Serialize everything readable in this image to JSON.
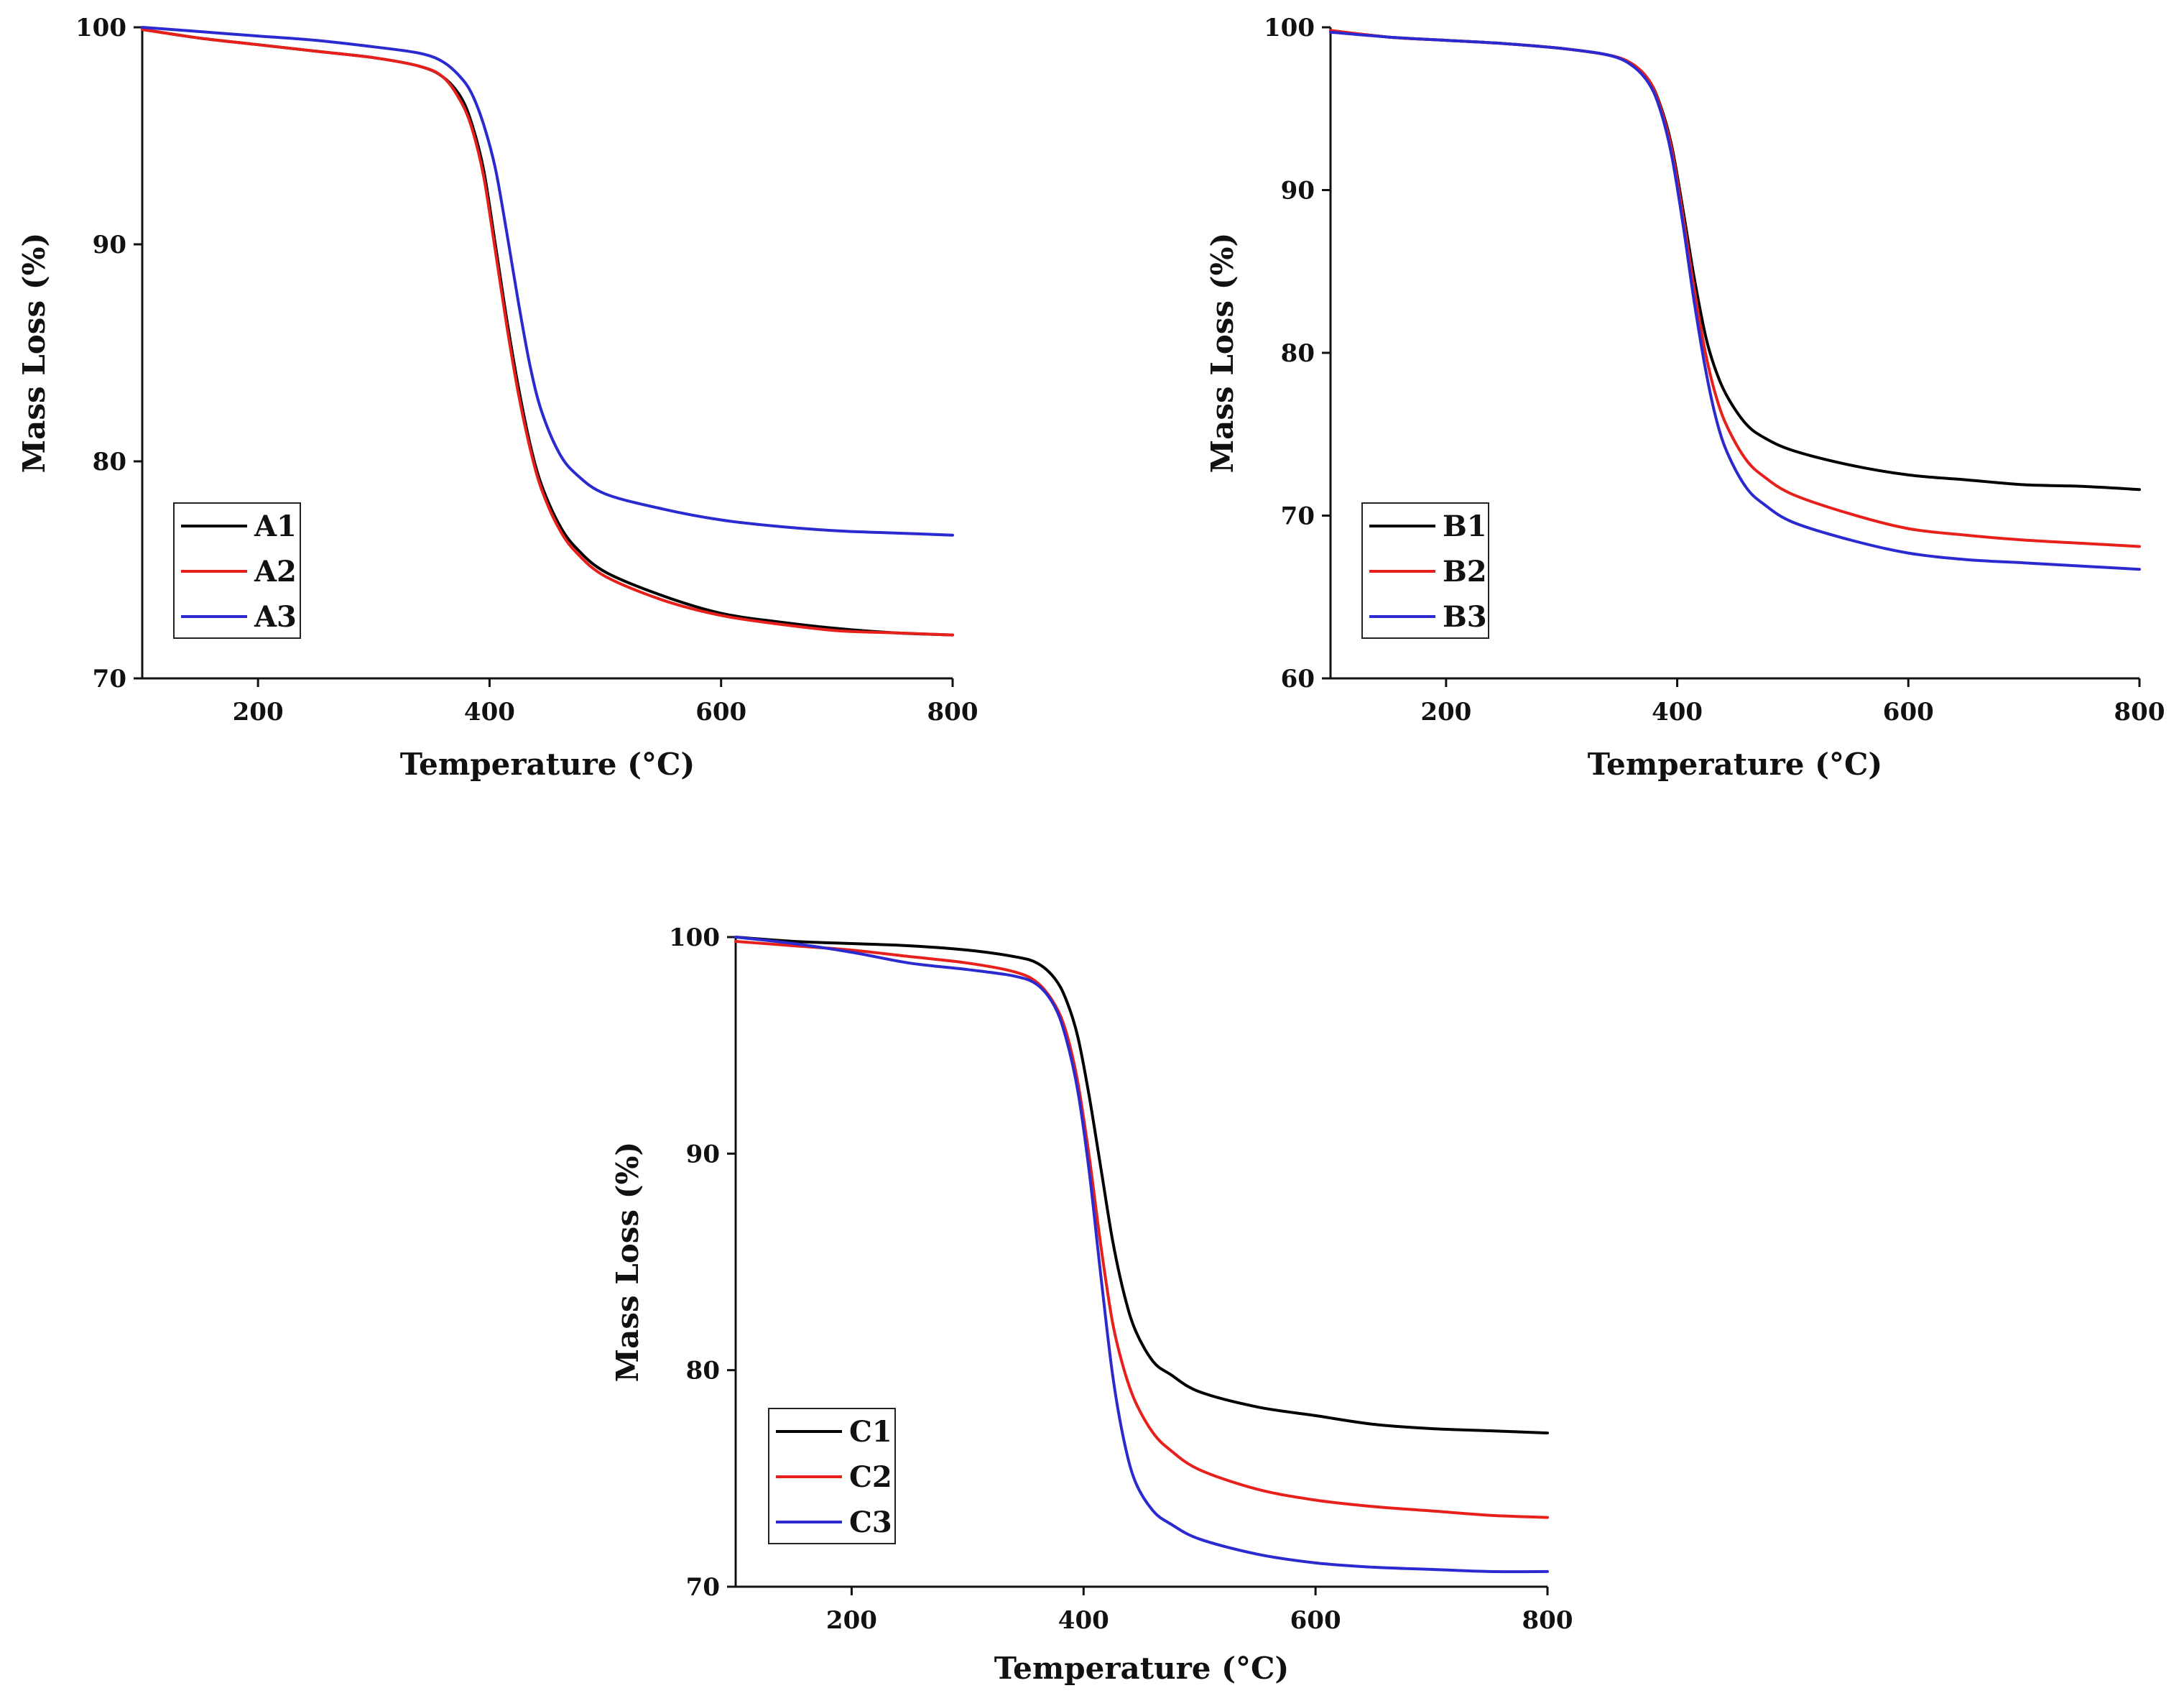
{
  "chart_data": [
    {
      "type": "line",
      "xlabel": "Temperature (°C)",
      "ylabel": "Mass Loss (%)",
      "xlim": [
        100,
        800
      ],
      "ylim": [
        70,
        100
      ],
      "xticks": [
        200,
        400,
        600,
        800
      ],
      "yticks": [
        70,
        80,
        90,
        100
      ],
      "legend_position": "bottom-left",
      "x": [
        100,
        150,
        200,
        250,
        300,
        340,
        360,
        375,
        385,
        395,
        405,
        415,
        425,
        435,
        445,
        460,
        475,
        500,
        550,
        600,
        650,
        700,
        750,
        800
      ],
      "series": [
        {
          "name": "A1",
          "color": "#000000",
          "values": [
            99.9,
            99.5,
            99.2,
            98.9,
            98.6,
            98.2,
            97.7,
            96.8,
            95.5,
            93.4,
            90.0,
            86.5,
            83.4,
            80.8,
            78.9,
            77.1,
            76.0,
            74.9,
            73.8,
            73.0,
            72.6,
            72.3,
            72.1,
            72.0
          ]
        },
        {
          "name": "A2",
          "color": "#e8201c",
          "values": [
            99.9,
            99.5,
            99.2,
            98.9,
            98.6,
            98.2,
            97.7,
            96.6,
            95.3,
            93.1,
            89.7,
            86.2,
            83.1,
            80.6,
            78.7,
            76.9,
            75.8,
            74.7,
            73.6,
            72.9,
            72.5,
            72.2,
            72.1,
            72.0
          ]
        },
        {
          "name": "A3",
          "color": "#2a2ad0",
          "values": [
            100.0,
            99.8,
            99.6,
            99.4,
            99.1,
            98.8,
            98.4,
            97.7,
            96.9,
            95.5,
            93.5,
            90.5,
            87.3,
            84.4,
            82.3,
            80.4,
            79.4,
            78.5,
            77.8,
            77.3,
            77.0,
            76.8,
            76.7,
            76.6
          ]
        }
      ]
    },
    {
      "type": "line",
      "xlabel": "Temperature (°C)",
      "ylabel": "Mass Loss (%)",
      "xlim": [
        100,
        800
      ],
      "ylim": [
        60,
        100
      ],
      "xticks": [
        200,
        400,
        600,
        800
      ],
      "yticks": [
        60,
        70,
        80,
        90,
        100
      ],
      "legend_position": "bottom-left",
      "x": [
        100,
        150,
        200,
        250,
        300,
        340,
        360,
        375,
        385,
        395,
        405,
        415,
        425,
        435,
        445,
        460,
        475,
        500,
        550,
        600,
        650,
        700,
        750,
        800
      ],
      "series": [
        {
          "name": "B1",
          "color": "#000000",
          "values": [
            99.8,
            99.4,
            99.2,
            99.0,
            98.7,
            98.3,
            97.8,
            96.8,
            95.3,
            92.8,
            88.8,
            84.5,
            80.9,
            78.6,
            77.1,
            75.6,
            74.8,
            74.0,
            73.1,
            72.5,
            72.2,
            71.9,
            71.8,
            71.6
          ]
        },
        {
          "name": "B2",
          "color": "#e8201c",
          "values": [
            99.8,
            99.4,
            99.2,
            99.0,
            98.7,
            98.3,
            97.8,
            96.8,
            95.2,
            92.6,
            88.4,
            83.8,
            79.8,
            77.0,
            75.2,
            73.4,
            72.4,
            71.3,
            70.1,
            69.2,
            68.8,
            68.5,
            68.3,
            68.1
          ]
        },
        {
          "name": "B3",
          "color": "#2a2ad0",
          "values": [
            99.7,
            99.4,
            99.2,
            99.0,
            98.7,
            98.3,
            97.7,
            96.6,
            95.0,
            92.2,
            87.9,
            83.0,
            78.8,
            75.6,
            73.6,
            71.7,
            70.7,
            69.6,
            68.5,
            67.7,
            67.3,
            67.1,
            66.9,
            66.7
          ]
        }
      ]
    },
    {
      "type": "line",
      "xlabel": "Temperature (°C)",
      "ylabel": "Mass Loss (%)",
      "xlim": [
        100,
        800
      ],
      "ylim": [
        70,
        100
      ],
      "xticks": [
        200,
        400,
        600,
        800
      ],
      "yticks": [
        70,
        80,
        90,
        100
      ],
      "legend_position": "bottom-left",
      "x": [
        100,
        150,
        200,
        250,
        300,
        340,
        360,
        375,
        385,
        395,
        405,
        415,
        425,
        435,
        445,
        460,
        475,
        500,
        550,
        600,
        650,
        700,
        750,
        800
      ],
      "series": [
        {
          "name": "C1",
          "color": "#000000",
          "values": [
            100.0,
            99.8,
            99.7,
            99.6,
            99.4,
            99.1,
            98.8,
            98.1,
            97.1,
            95.4,
            92.6,
            89.3,
            86.0,
            83.5,
            81.8,
            80.4,
            79.8,
            79.0,
            78.3,
            77.9,
            77.5,
            77.3,
            77.2,
            77.1
          ]
        },
        {
          "name": "C2",
          "color": "#e8201c",
          "values": [
            99.8,
            99.6,
            99.4,
            99.1,
            98.8,
            98.4,
            97.9,
            96.9,
            95.6,
            93.3,
            89.8,
            85.7,
            82.2,
            80.0,
            78.5,
            77.1,
            76.3,
            75.4,
            74.5,
            74.0,
            73.7,
            73.5,
            73.3,
            73.2
          ]
        },
        {
          "name": "C3",
          "color": "#2a2ad0",
          "values": [
            100.0,
            99.7,
            99.3,
            98.8,
            98.5,
            98.2,
            97.8,
            96.8,
            95.3,
            92.9,
            89.1,
            84.3,
            79.8,
            76.7,
            74.8,
            73.5,
            72.9,
            72.2,
            71.5,
            71.1,
            70.9,
            70.8,
            70.7,
            70.7
          ]
        }
      ]
    }
  ]
}
